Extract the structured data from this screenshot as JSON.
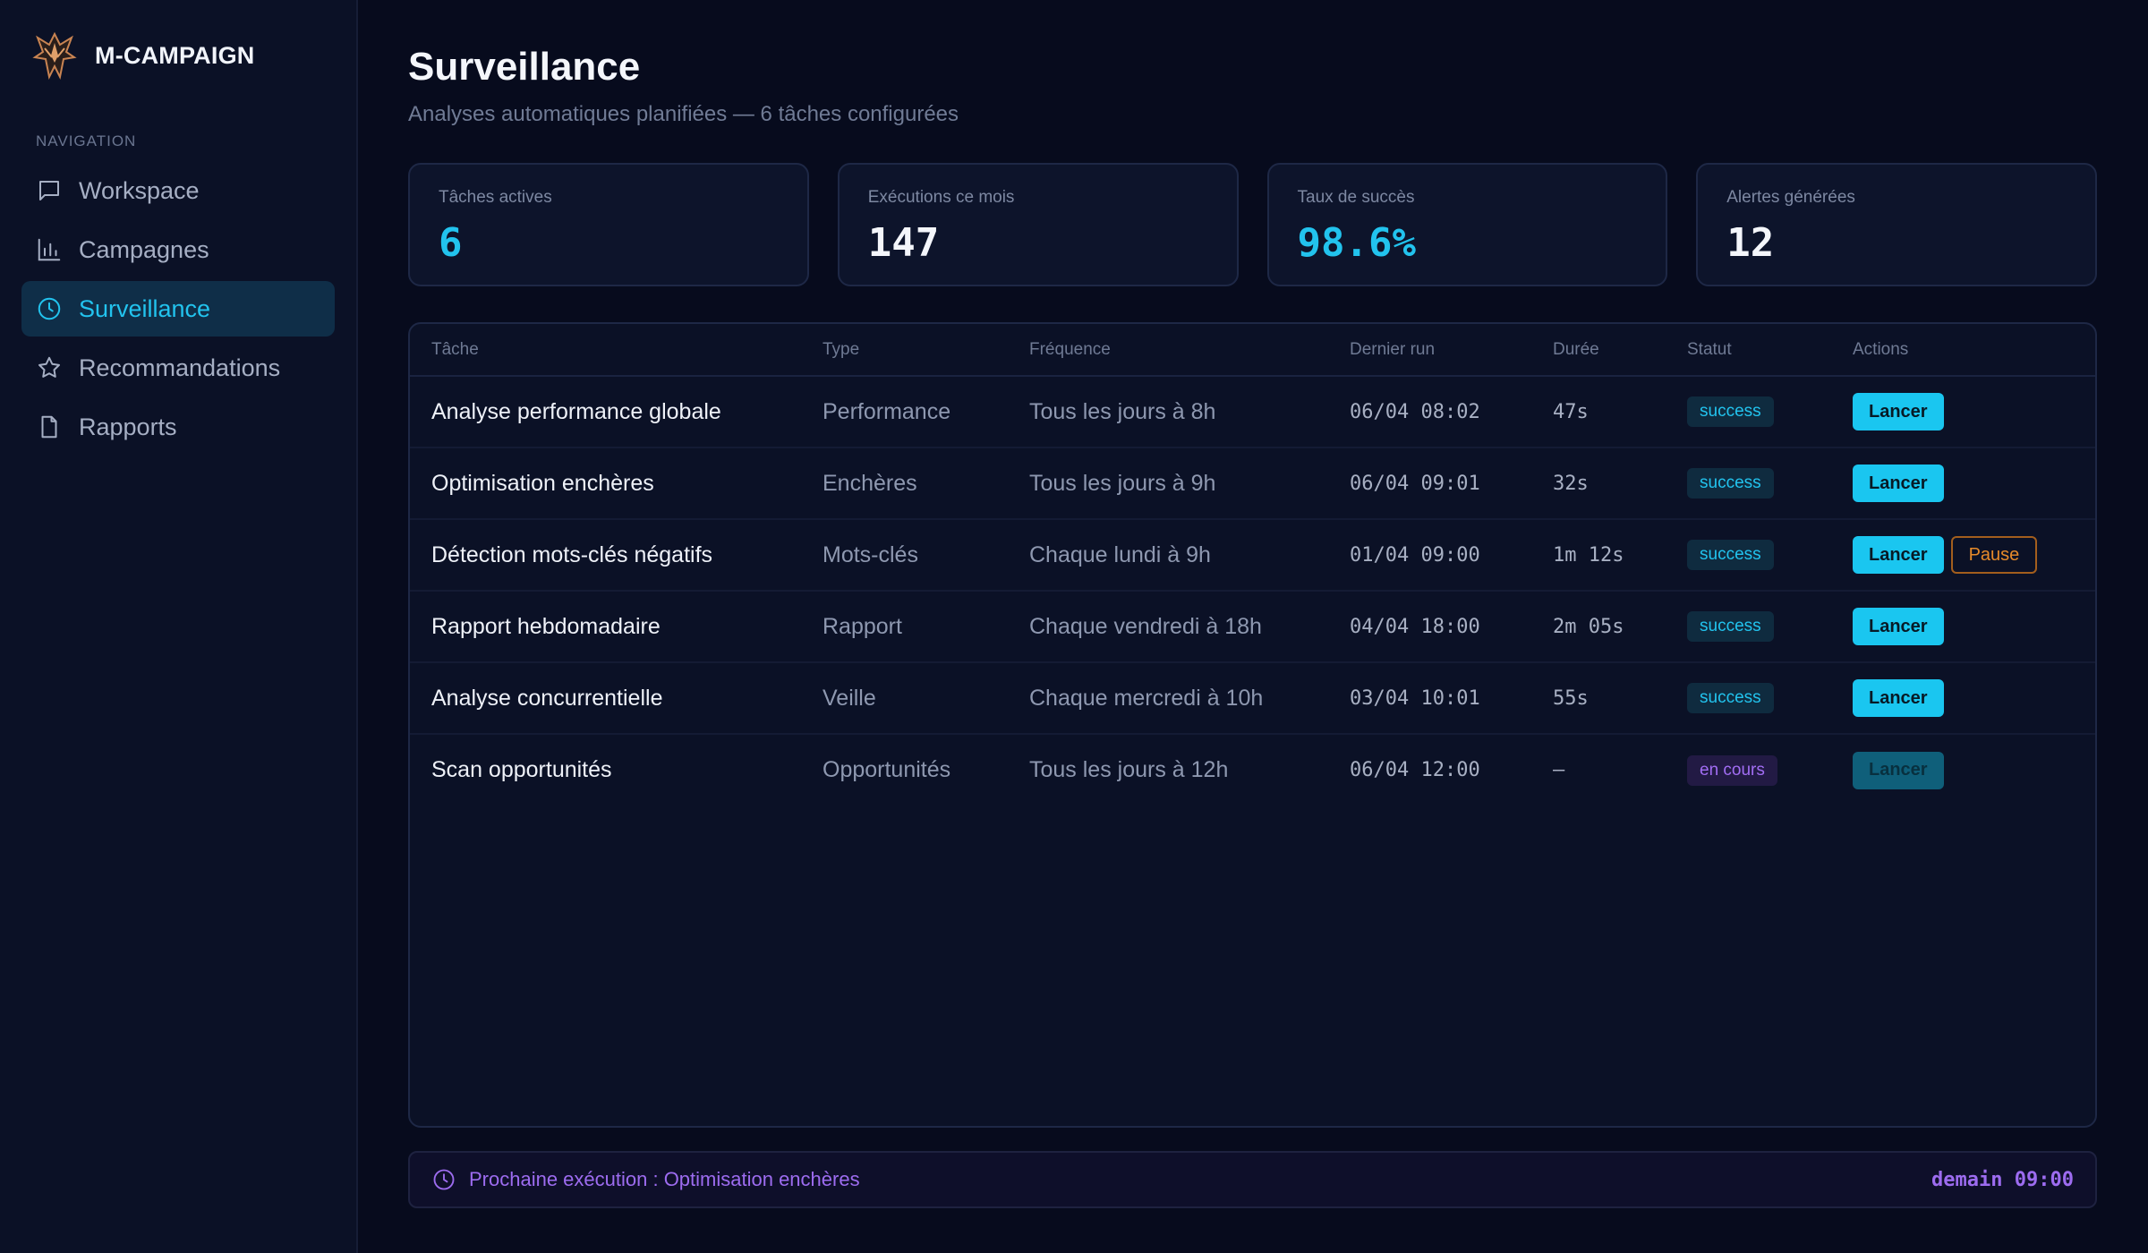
{
  "brand": {
    "name": "M-CAMPAIGN"
  },
  "nav": {
    "heading": "NAVIGATION",
    "items": [
      {
        "label": "Workspace",
        "icon": "chat-bubble-icon"
      },
      {
        "label": "Campagnes",
        "icon": "bar-chart-icon"
      },
      {
        "label": "Surveillance",
        "icon": "clock-icon",
        "active": true
      },
      {
        "label": "Recommandations",
        "icon": "star-icon"
      },
      {
        "label": "Rapports",
        "icon": "document-icon"
      }
    ]
  },
  "page": {
    "title": "Surveillance",
    "subtitle": "Analyses automatiques planifiées — 6 tâches configurées"
  },
  "stats": [
    {
      "label": "Tâches actives",
      "value": "6",
      "color": "#22c3ee"
    },
    {
      "label": "Exécutions ce mois",
      "value": "147",
      "color": "#f4f6fb"
    },
    {
      "label": "Taux de succès",
      "value": "98.6%",
      "color": "#22c3ee"
    },
    {
      "label": "Alertes générées",
      "value": "12",
      "color": "#f4f6fb"
    }
  ],
  "table": {
    "columns": [
      "Tâche",
      "Type",
      "Fréquence",
      "Dernier run",
      "Durée",
      "Statut",
      "Actions"
    ],
    "rows": [
      {
        "task": "Analyse performance globale",
        "type": "Performance",
        "frequency": "Tous les jours à 8h",
        "last_run": "06/04 08:02",
        "duration": "47s",
        "status": "success",
        "launch": "Lancer"
      },
      {
        "task": "Optimisation enchères",
        "type": "Enchères",
        "frequency": "Tous les jours à 9h",
        "last_run": "06/04 09:01",
        "duration": "32s",
        "status": "success",
        "launch": "Lancer"
      },
      {
        "task": "Détection mots-clés négatifs",
        "type": "Mots-clés",
        "frequency": "Chaque lundi à 9h",
        "last_run": "01/04 09:00",
        "duration": "1m 12s",
        "status": "success",
        "launch": "Lancer",
        "pause": "Pause"
      },
      {
        "task": "Rapport hebdomadaire",
        "type": "Rapport",
        "frequency": "Chaque vendredi à 18h",
        "last_run": "04/04 18:00",
        "duration": "2m 05s",
        "status": "success",
        "launch": "Lancer"
      },
      {
        "task": "Analyse concurrentielle",
        "type": "Veille",
        "frequency": "Chaque mercredi à 10h",
        "last_run": "03/04 10:01",
        "duration": "55s",
        "status": "success",
        "launch": "Lancer"
      },
      {
        "task": "Scan opportunités",
        "type": "Opportunités",
        "frequency": "Tous les jours à 12h",
        "last_run": "06/04 12:00",
        "duration": "—",
        "status": "en cours",
        "launch": "Lancer"
      }
    ]
  },
  "next_run": {
    "label": "Prochaine exécution : Optimisation enchères",
    "time": "demain 09:00",
    "icon": "clock-icon"
  },
  "colors": {
    "accent": "#22c3ee",
    "purple": "#9d6cf0",
    "warning": "#e68a2a",
    "background": "#070b1d"
  }
}
